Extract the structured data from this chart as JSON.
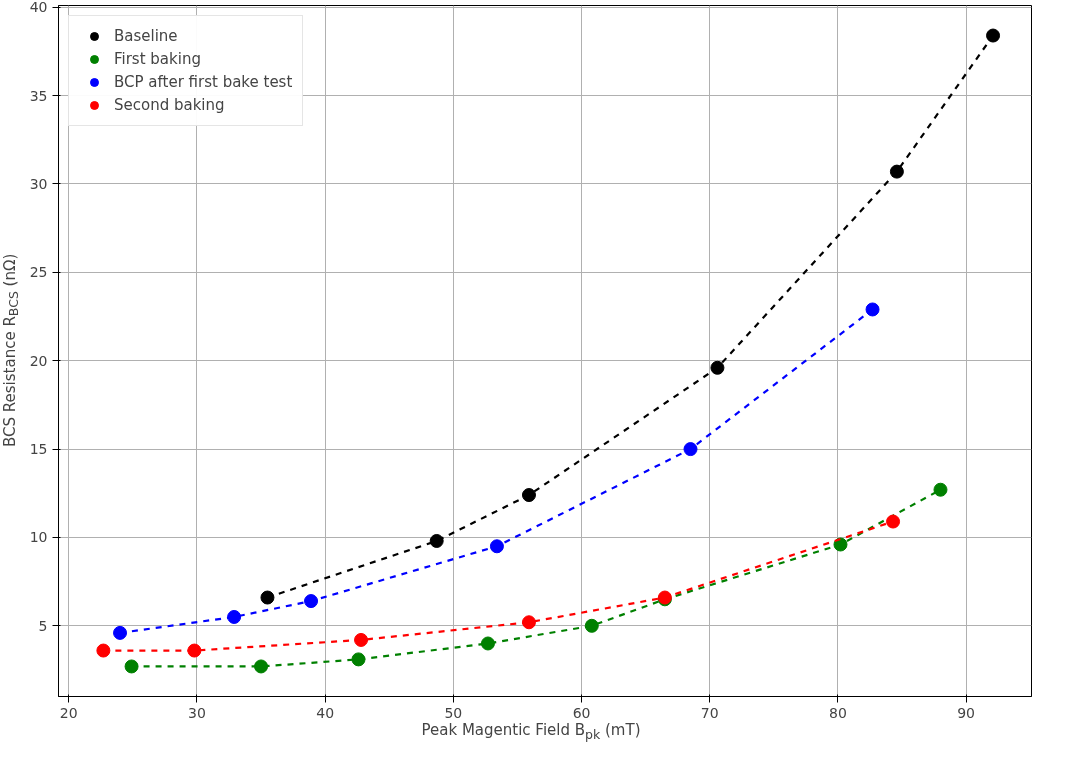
{
  "chart_data": {
    "type": "line",
    "xlabel": "Peak Magentic Field B$_{pk}$ (mT)",
    "ylabel": "BCS Resistance R$_{BCS}$ (nΩ)",
    "xlim": [
      19.2,
      95.1
    ],
    "ylim": [
      1,
      40.1
    ],
    "xticks": [
      20,
      30,
      40,
      50,
      60,
      70,
      80,
      90
    ],
    "yticks": [
      5,
      10,
      15,
      20,
      25,
      30,
      35,
      40
    ],
    "grid": true,
    "legend": "top left",
    "marker": "circle",
    "line_style": "dashed",
    "series": [
      {
        "name": "Baseline",
        "color": "#000000",
        "x": [
          35.5,
          48.7,
          55.9,
          70.6,
          84.6,
          92.1
        ],
        "values": [
          6.6,
          9.8,
          12.4,
          19.6,
          30.7,
          38.4
        ]
      },
      {
        "name": "First baking",
        "color": "#008000",
        "x": [
          24.9,
          35.0,
          42.6,
          52.7,
          60.8,
          66.5,
          80.2,
          88.0
        ],
        "values": [
          2.7,
          2.7,
          3.1,
          4.0,
          5.0,
          6.5,
          9.6,
          12.7
        ]
      },
      {
        "name": "BCP after first bake test",
        "color": "#0000ff",
        "x": [
          24.0,
          32.9,
          38.9,
          53.4,
          68.5,
          82.7
        ],
        "values": [
          4.6,
          5.5,
          6.4,
          9.5,
          15.0,
          22.9
        ]
      },
      {
        "name": "Second baking",
        "color": "#ff0000",
        "x": [
          22.7,
          29.8,
          42.8,
          55.9,
          66.5,
          84.3
        ],
        "values": [
          3.6,
          3.6,
          4.2,
          5.2,
          6.6,
          10.9
        ]
      }
    ]
  }
}
